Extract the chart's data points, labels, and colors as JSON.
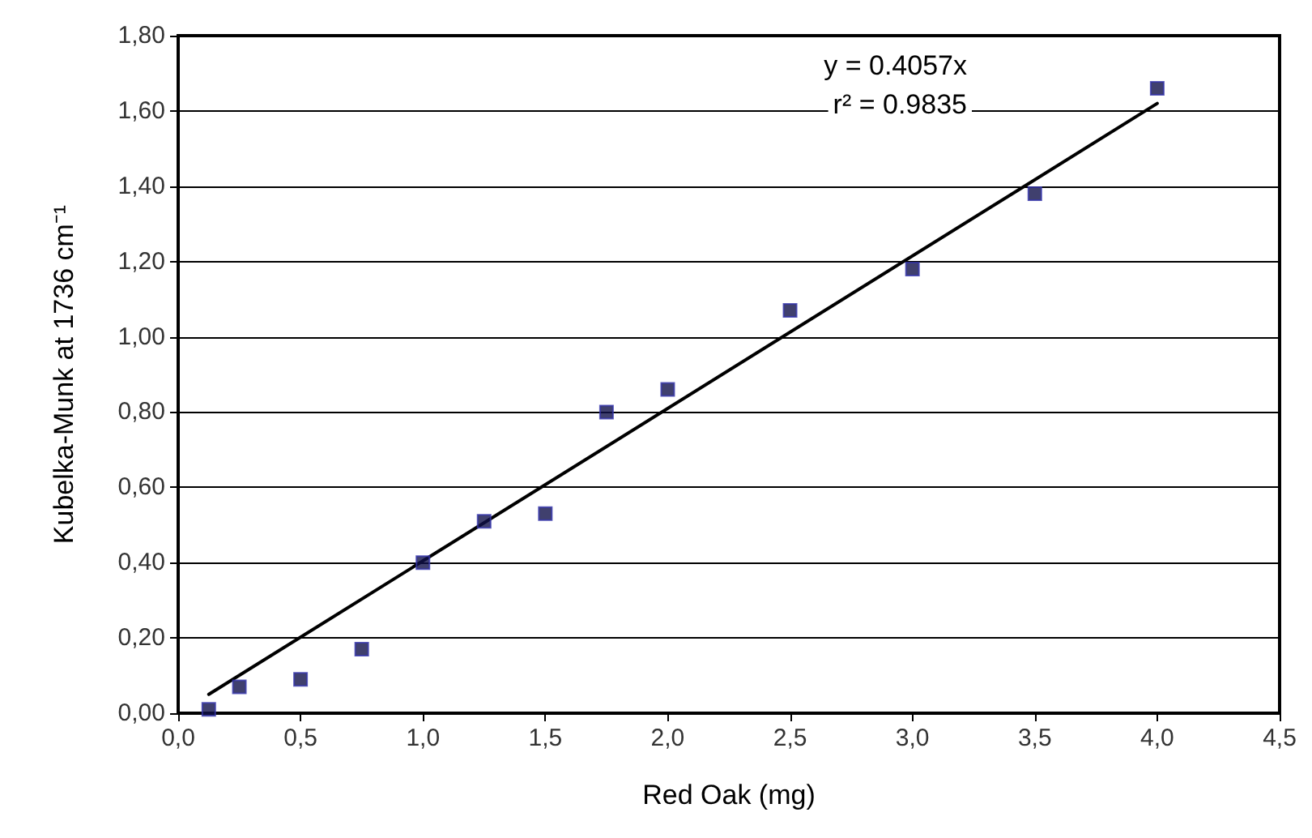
{
  "chart_data": {
    "type": "scatter",
    "xlabel": "Red Oak (mg)",
    "ylabel": "Kubelka-Munk at 1736 cm⁻¹",
    "annotations": [
      "y = 0.4057x",
      "r² = 0.9835"
    ],
    "series": [
      {
        "color": "#10104a",
        "marker": "square",
        "x": [
          0.125,
          0.25,
          0.5,
          0.75,
          1.0,
          1.25,
          1.5,
          1.75,
          2.0,
          2.5,
          3.0,
          3.5,
          4.0
        ],
        "values": [
          0.01,
          0.07,
          0.09,
          0.17,
          0.4,
          0.51,
          0.53,
          0.8,
          0.86,
          1.07,
          1.18,
          1.38,
          1.66
        ]
      },
      {
        "type": "line",
        "marker": "none",
        "color": "#000000",
        "x": [
          0.125,
          4.0
        ],
        "values": [
          0.05,
          1.62
        ]
      }
    ],
    "xlim": [
      0,
      4.5
    ],
    "xticks": [
      {
        "value": 0,
        "label": "0,0"
      },
      {
        "value": 0.5,
        "label": "0,5"
      },
      {
        "value": 1,
        "label": "1,0"
      },
      {
        "value": 1.5,
        "label": "1,5"
      },
      {
        "value": 2,
        "label": "2,0"
      },
      {
        "value": 2.5,
        "label": "2,5"
      },
      {
        "value": 3,
        "label": "3,0"
      },
      {
        "value": 3.5,
        "label": "3,5"
      },
      {
        "value": 4,
        "label": "4,0"
      },
      {
        "value": 4.5,
        "label": "4,5"
      }
    ],
    "ylim": [
      0,
      1.8
    ],
    "yticks": [
      {
        "value": 0,
        "label": "0,00"
      },
      {
        "value": 0.2,
        "label": "0,20"
      },
      {
        "value": 0.4,
        "label": "0,40"
      },
      {
        "value": 0.6,
        "label": "0,60"
      },
      {
        "value": 0.8,
        "label": "0,80"
      },
      {
        "value": 1,
        "label": "1,00"
      },
      {
        "value": 1.2,
        "label": "1,20"
      },
      {
        "value": 1.4,
        "label": "1,40"
      },
      {
        "value": 1.6,
        "label": "1,60"
      },
      {
        "value": 1.8,
        "label": "1,80"
      }
    ],
    "grid": "y",
    "line_style": "solid"
  }
}
